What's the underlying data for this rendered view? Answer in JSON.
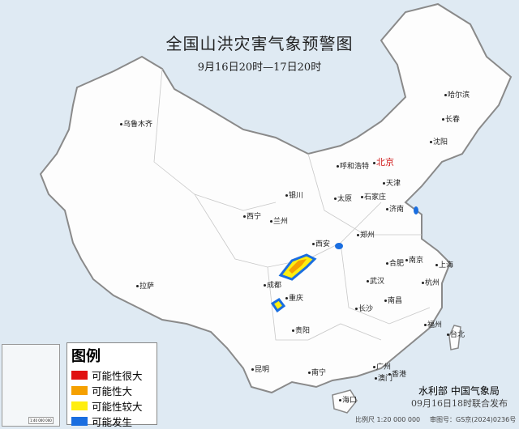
{
  "title": "全国山洪灾害气象预警图",
  "subtitle": "9月16日20时—17日20时",
  "legend": {
    "title": "图例",
    "items": [
      {
        "label": "可能性很大",
        "color": "#e01010"
      },
      {
        "label": "可能性大",
        "color": "#f5a000"
      },
      {
        "label": "可能性较大",
        "color": "#ffee10"
      },
      {
        "label": "可能发生",
        "color": "#1a6ee0"
      }
    ]
  },
  "cities": [
    {
      "name": "乌鲁木齐"
    },
    {
      "name": "哈尔滨"
    },
    {
      "name": "长春"
    },
    {
      "name": "沈阳"
    },
    {
      "name": "呼和浩特"
    },
    {
      "name": "北京",
      "capital": true
    },
    {
      "name": "天津"
    },
    {
      "name": "银川"
    },
    {
      "name": "太原"
    },
    {
      "name": "石家庄"
    },
    {
      "name": "济南"
    },
    {
      "name": "西宁"
    },
    {
      "name": "兰州"
    },
    {
      "name": "郑州"
    },
    {
      "name": "西安"
    },
    {
      "name": "合肥"
    },
    {
      "name": "南京"
    },
    {
      "name": "上海"
    },
    {
      "name": "成都"
    },
    {
      "name": "武汉"
    },
    {
      "name": "杭州"
    },
    {
      "name": "重庆"
    },
    {
      "name": "长沙"
    },
    {
      "name": "南昌"
    },
    {
      "name": "拉萨"
    },
    {
      "name": "贵阳"
    },
    {
      "name": "福州"
    },
    {
      "name": "台北"
    },
    {
      "name": "昆明"
    },
    {
      "name": "南宁"
    },
    {
      "name": "广州"
    },
    {
      "name": "澳门"
    },
    {
      "name": "香港"
    },
    {
      "name": "海口"
    }
  ],
  "inset_scale": "1:40 000 000",
  "issuer": "水利部  中国气象局",
  "issue_time": "09月16日18时联合发布",
  "scale": "比例尺  1:20 000 000",
  "approval": "审图号：GS京(2024)0236号"
}
